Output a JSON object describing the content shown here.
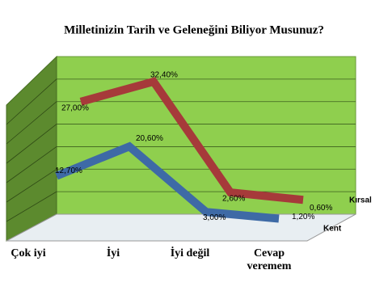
{
  "chart_data": {
    "type": "line",
    "title": "Milletinizin Tarih ve Geleneğini Biliyor Musunuz?",
    "categories": [
      "Çok iyi",
      "İyi",
      "İyi değil",
      "Cevap veremem"
    ],
    "series": [
      {
        "name": "Kent",
        "color": "#3e6aa6",
        "values": [
          12.7,
          20.6,
          3.0,
          1.2
        ],
        "value_labels": [
          "12,70%",
          "20,60%",
          "3,00%",
          "1,20%"
        ]
      },
      {
        "name": "Kırsal",
        "color": "#a63a3a",
        "values": [
          27.0,
          32.4,
          2.6,
          0.6
        ],
        "value_labels": [
          "27,00%",
          "32,40%",
          "2,60%",
          "0,60%"
        ]
      }
    ],
    "ylim": [
      0,
      35
    ],
    "grid": true
  }
}
